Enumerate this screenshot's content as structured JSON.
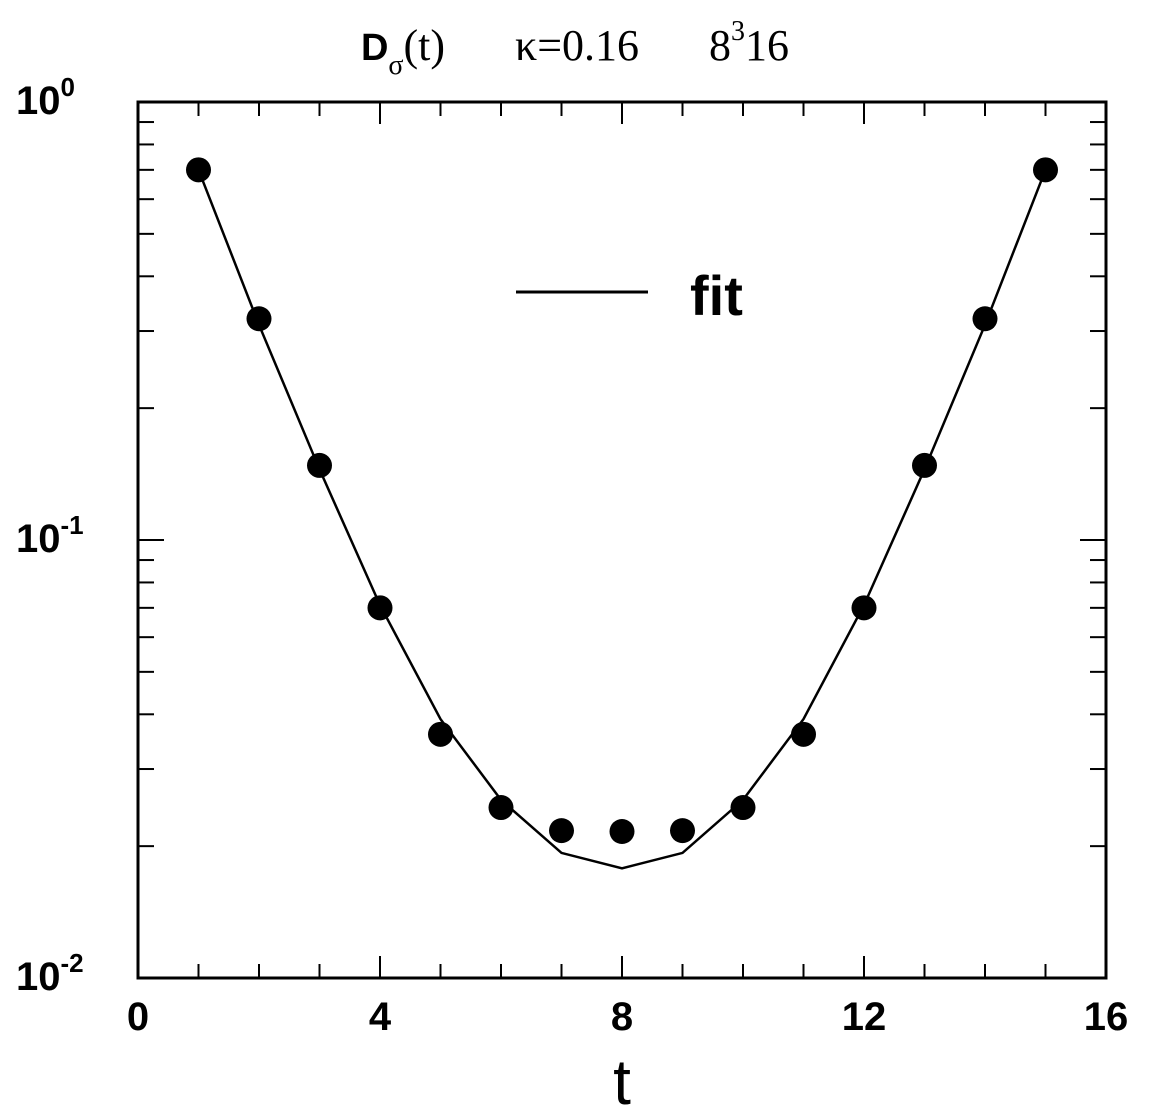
{
  "chart_data": {
    "type": "scatter",
    "title": {
      "symbol": "D",
      "subscript": "σ",
      "argument": "(t)",
      "kappa": "κ=0.16",
      "lattice_base": "8",
      "lattice_exp": "3",
      "lattice_rest": "16"
    },
    "xlabel": "t",
    "ylabel": "",
    "xlim": [
      0,
      16
    ],
    "ylim": [
      0.01,
      1
    ],
    "yscale": "log",
    "x_ticks": [
      "0",
      "4",
      "8",
      "12",
      "16"
    ],
    "y_ticks": [
      {
        "base": "10",
        "exp": "0",
        "value": 1
      },
      {
        "base": "10",
        "exp": "-1",
        "value": 0.1
      },
      {
        "base": "10",
        "exp": "-2",
        "value": 0.01
      }
    ],
    "legend": {
      "label": "fit",
      "position": "upper-center"
    },
    "series": [
      {
        "kind": "points",
        "x": [
          1,
          2,
          3,
          4,
          5,
          6,
          7,
          8,
          9,
          10,
          11,
          12,
          13,
          14,
          15
        ],
        "y": [
          0.7,
          0.32,
          0.148,
          0.07,
          0.036,
          0.0245,
          0.0217,
          0.0216,
          0.0217,
          0.0245,
          0.036,
          0.07,
          0.148,
          0.32,
          0.7
        ]
      },
      {
        "name": "fit",
        "kind": "line",
        "x": [
          1,
          2,
          3,
          4,
          5,
          6,
          7,
          8,
          9,
          10,
          11,
          12,
          13,
          14,
          15
        ],
        "y": [
          0.7,
          0.31,
          0.145,
          0.071,
          0.039,
          0.0255,
          0.0193,
          0.0178,
          0.0193,
          0.0255,
          0.039,
          0.071,
          0.145,
          0.31,
          0.7
        ]
      }
    ]
  }
}
